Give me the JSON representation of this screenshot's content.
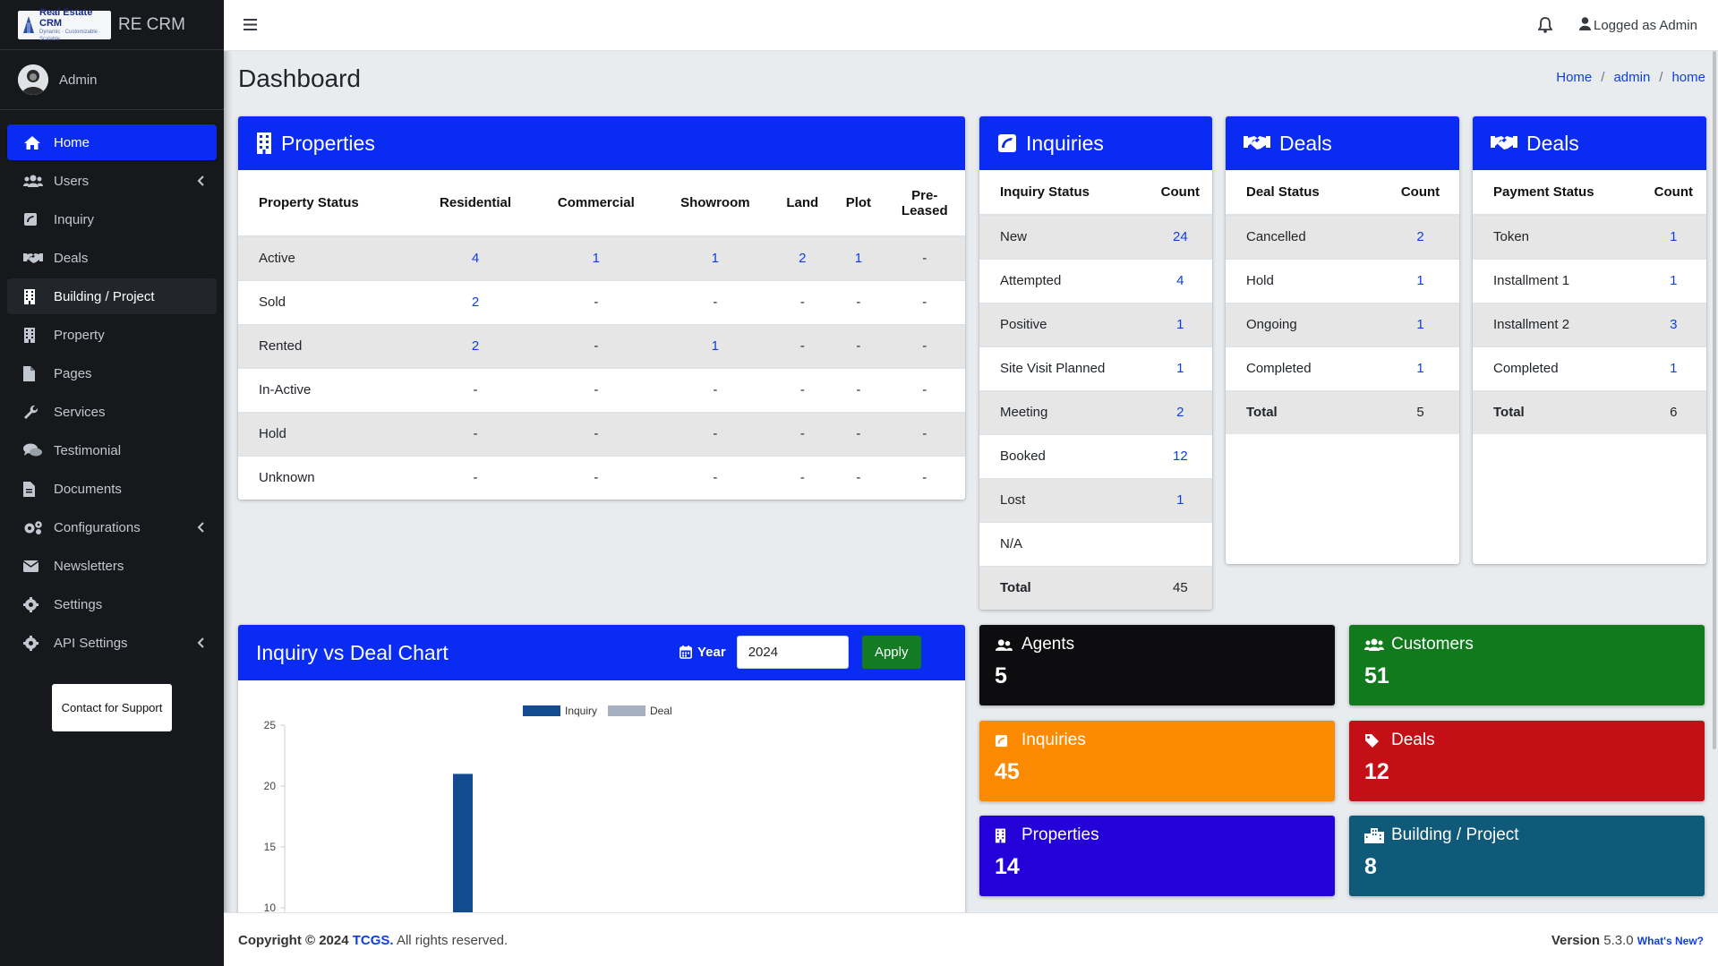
{
  "brand": {
    "logo_title": "Real Estate CRM",
    "logo_tagline": "Dynamic · Customizable · Scalable",
    "app_name": "RE CRM"
  },
  "user": {
    "name": "Admin"
  },
  "sidebar": {
    "items": [
      {
        "label": "Home",
        "icon": "home-icon"
      },
      {
        "label": "Users",
        "icon": "users-icon"
      },
      {
        "label": "Inquiry",
        "icon": "inquiry-icon"
      },
      {
        "label": "Deals",
        "icon": "handshake-icon"
      },
      {
        "label": "Building / Project",
        "icon": "building-icon"
      },
      {
        "label": "Property",
        "icon": "property-icon"
      },
      {
        "label": "Pages",
        "icon": "file-icon"
      },
      {
        "label": "Services",
        "icon": "wrench-icon"
      },
      {
        "label": "Testimonial",
        "icon": "comments-icon"
      },
      {
        "label": "Documents",
        "icon": "document-icon"
      },
      {
        "label": "Configurations",
        "icon": "cogs-icon"
      },
      {
        "label": "Newsletters",
        "icon": "envelope-icon"
      },
      {
        "label": "Settings",
        "icon": "gear-icon"
      },
      {
        "label": "API Settings",
        "icon": "gear-icon"
      }
    ],
    "support_label": "Contact for Support"
  },
  "header": {
    "logged_in": "Logged as Admin"
  },
  "page": {
    "title": "Dashboard",
    "breadcrumb": [
      "Home",
      "admin",
      "home"
    ]
  },
  "properties": {
    "title": "Properties",
    "columns": [
      "Property Status",
      "Residential",
      "Commercial",
      "Showroom",
      "Land",
      "Plot",
      "Pre-\nLeased"
    ],
    "rows": [
      [
        "Active",
        "4",
        "1",
        "1",
        "2",
        "1",
        "-"
      ],
      [
        "Sold",
        "2",
        "-",
        "-",
        "-",
        "-",
        "-"
      ],
      [
        "Rented",
        "2",
        "-",
        "1",
        "-",
        "-",
        "-"
      ],
      [
        "In-Active",
        "-",
        "-",
        "-",
        "-",
        "-",
        "-"
      ],
      [
        "Hold",
        "-",
        "-",
        "-",
        "-",
        "-",
        "-"
      ],
      [
        "Unknown",
        "-",
        "-",
        "-",
        "-",
        "-",
        "-"
      ]
    ]
  },
  "inquiries": {
    "title": "Inquiries",
    "columns": [
      "Inquiry Status",
      "Count"
    ],
    "rows": [
      [
        "New",
        "24"
      ],
      [
        "Attempted",
        "4"
      ],
      [
        "Positive",
        "1"
      ],
      [
        "Site Visit Planned",
        "1"
      ],
      [
        "Meeting",
        "2"
      ],
      [
        "Booked",
        "12"
      ],
      [
        "Lost",
        "1"
      ],
      [
        "N/A",
        ""
      ]
    ],
    "total": [
      "Total",
      "45"
    ]
  },
  "deals": {
    "title": "Deals",
    "columns": [
      "Deal Status",
      "Count"
    ],
    "rows": [
      [
        "Cancelled",
        "2"
      ],
      [
        "Hold",
        "1"
      ],
      [
        "Ongoing",
        "1"
      ],
      [
        "Completed",
        "1"
      ]
    ],
    "total": [
      "Total",
      "5"
    ]
  },
  "payments": {
    "title": "Deals",
    "columns": [
      "Payment Status",
      "Count"
    ],
    "rows": [
      [
        "Token",
        "1"
      ],
      [
        "Installment 1",
        "1"
      ],
      [
        "Installment 2",
        "3"
      ],
      [
        "Completed",
        "1"
      ]
    ],
    "total": [
      "Total",
      "6"
    ]
  },
  "chart_card": {
    "title": "Inquiry vs Deal Chart",
    "year_label": "Year",
    "year_value": "2024",
    "apply_label": "Apply"
  },
  "chart_data": {
    "type": "bar",
    "title": "",
    "xlabel": "",
    "ylabel": "",
    "series": [
      {
        "name": "Inquiry",
        "color": "#124b8f"
      },
      {
        "name": "Deal",
        "color": "#a7b0c0"
      }
    ],
    "yticks": [
      25,
      20,
      15,
      10
    ],
    "visible_bars": [
      {
        "series": "Inquiry",
        "value": 21
      }
    ],
    "ylim_visible": [
      10,
      25
    ]
  },
  "boxes": [
    {
      "label": "Agents",
      "value": "5",
      "icon": "users-icon",
      "color": "#0d0d0f"
    },
    {
      "label": "Customers",
      "value": "51",
      "icon": "users-icon",
      "color": "#117a1d"
    },
    {
      "label": "Inquiries",
      "value": "45",
      "icon": "inquiry-icon",
      "color": "#fc8a00"
    },
    {
      "label": "Deals",
      "value": "12",
      "icon": "tag-icon",
      "color": "#c40f17"
    },
    {
      "label": "Properties",
      "value": "14",
      "icon": "building-icon",
      "color": "#2400d9"
    },
    {
      "label": "Building / Project",
      "value": "8",
      "icon": "city-icon",
      "color": "#0f5a78"
    }
  ],
  "footer": {
    "copyright": "Copyright © 2024",
    "company": "TCGS.",
    "rights": "All rights reserved.",
    "version_label": "Version",
    "version": "5.3.0",
    "whats_new": "What's New?"
  }
}
